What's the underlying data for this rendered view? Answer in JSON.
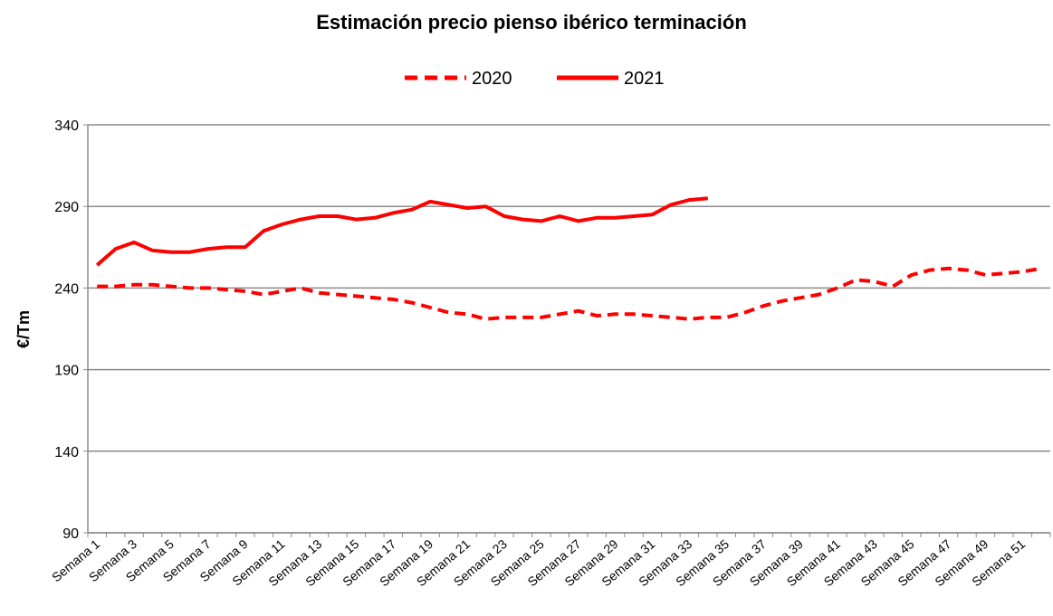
{
  "chart_data": {
    "type": "line",
    "title": "Estimación precio pienso ibérico terminación",
    "y_label": "€/Tm",
    "categories": [
      "Semana 1",
      null,
      "Semana 3",
      null,
      "Semana 5",
      null,
      "Semana 7",
      null,
      "Semana 9",
      null,
      "Semana 11",
      null,
      "Semana 13",
      null,
      "Semana 15",
      null,
      "Semana 17",
      null,
      "Semana 19",
      null,
      "Semana 21",
      null,
      "Semana 23",
      null,
      "Semana 25",
      null,
      "Semana 27",
      null,
      "Semana 29",
      null,
      "Semana 31",
      null,
      "Semana 33",
      null,
      "Semana 35",
      null,
      "Semana 37",
      null,
      "Semana 39",
      null,
      "Semana 41",
      null,
      "Semana 43",
      null,
      "Semana 45",
      null,
      "Semana 47",
      null,
      "Semana 49",
      null,
      "Semana 51",
      null
    ],
    "series": [
      {
        "name": "2020",
        "color": "#ff0000",
        "dash": true,
        "values": [
          241,
          241,
          242,
          242,
          241,
          240,
          240,
          239,
          238,
          236,
          238,
          240,
          237,
          236,
          235,
          234,
          233,
          231,
          228,
          225,
          224,
          221,
          222,
          222,
          222,
          224,
          226,
          223,
          224,
          224,
          223,
          222,
          221,
          222,
          222,
          225,
          229,
          232,
          234,
          236,
          240,
          245,
          244,
          241,
          248,
          251,
          252,
          251,
          248,
          249,
          250,
          252
        ]
      },
      {
        "name": "2021",
        "color": "#ff0000",
        "dash": false,
        "values": [
          254,
          264,
          268,
          263,
          262,
          262,
          264,
          265,
          265,
          275,
          279,
          282,
          284,
          284,
          282,
          283,
          286,
          288,
          293,
          291,
          289,
          290,
          284,
          282,
          281,
          284,
          281,
          283,
          283,
          284,
          285,
          291,
          294,
          295,
          null,
          null,
          null,
          null,
          null,
          null,
          null,
          null,
          null,
          null,
          null,
          null,
          null,
          null,
          null,
          null,
          null,
          null
        ]
      }
    ],
    "ylim": [
      90,
      340
    ],
    "yticks": [
      90,
      140,
      190,
      240,
      290,
      340
    ],
    "grid": true,
    "legend": "top"
  }
}
